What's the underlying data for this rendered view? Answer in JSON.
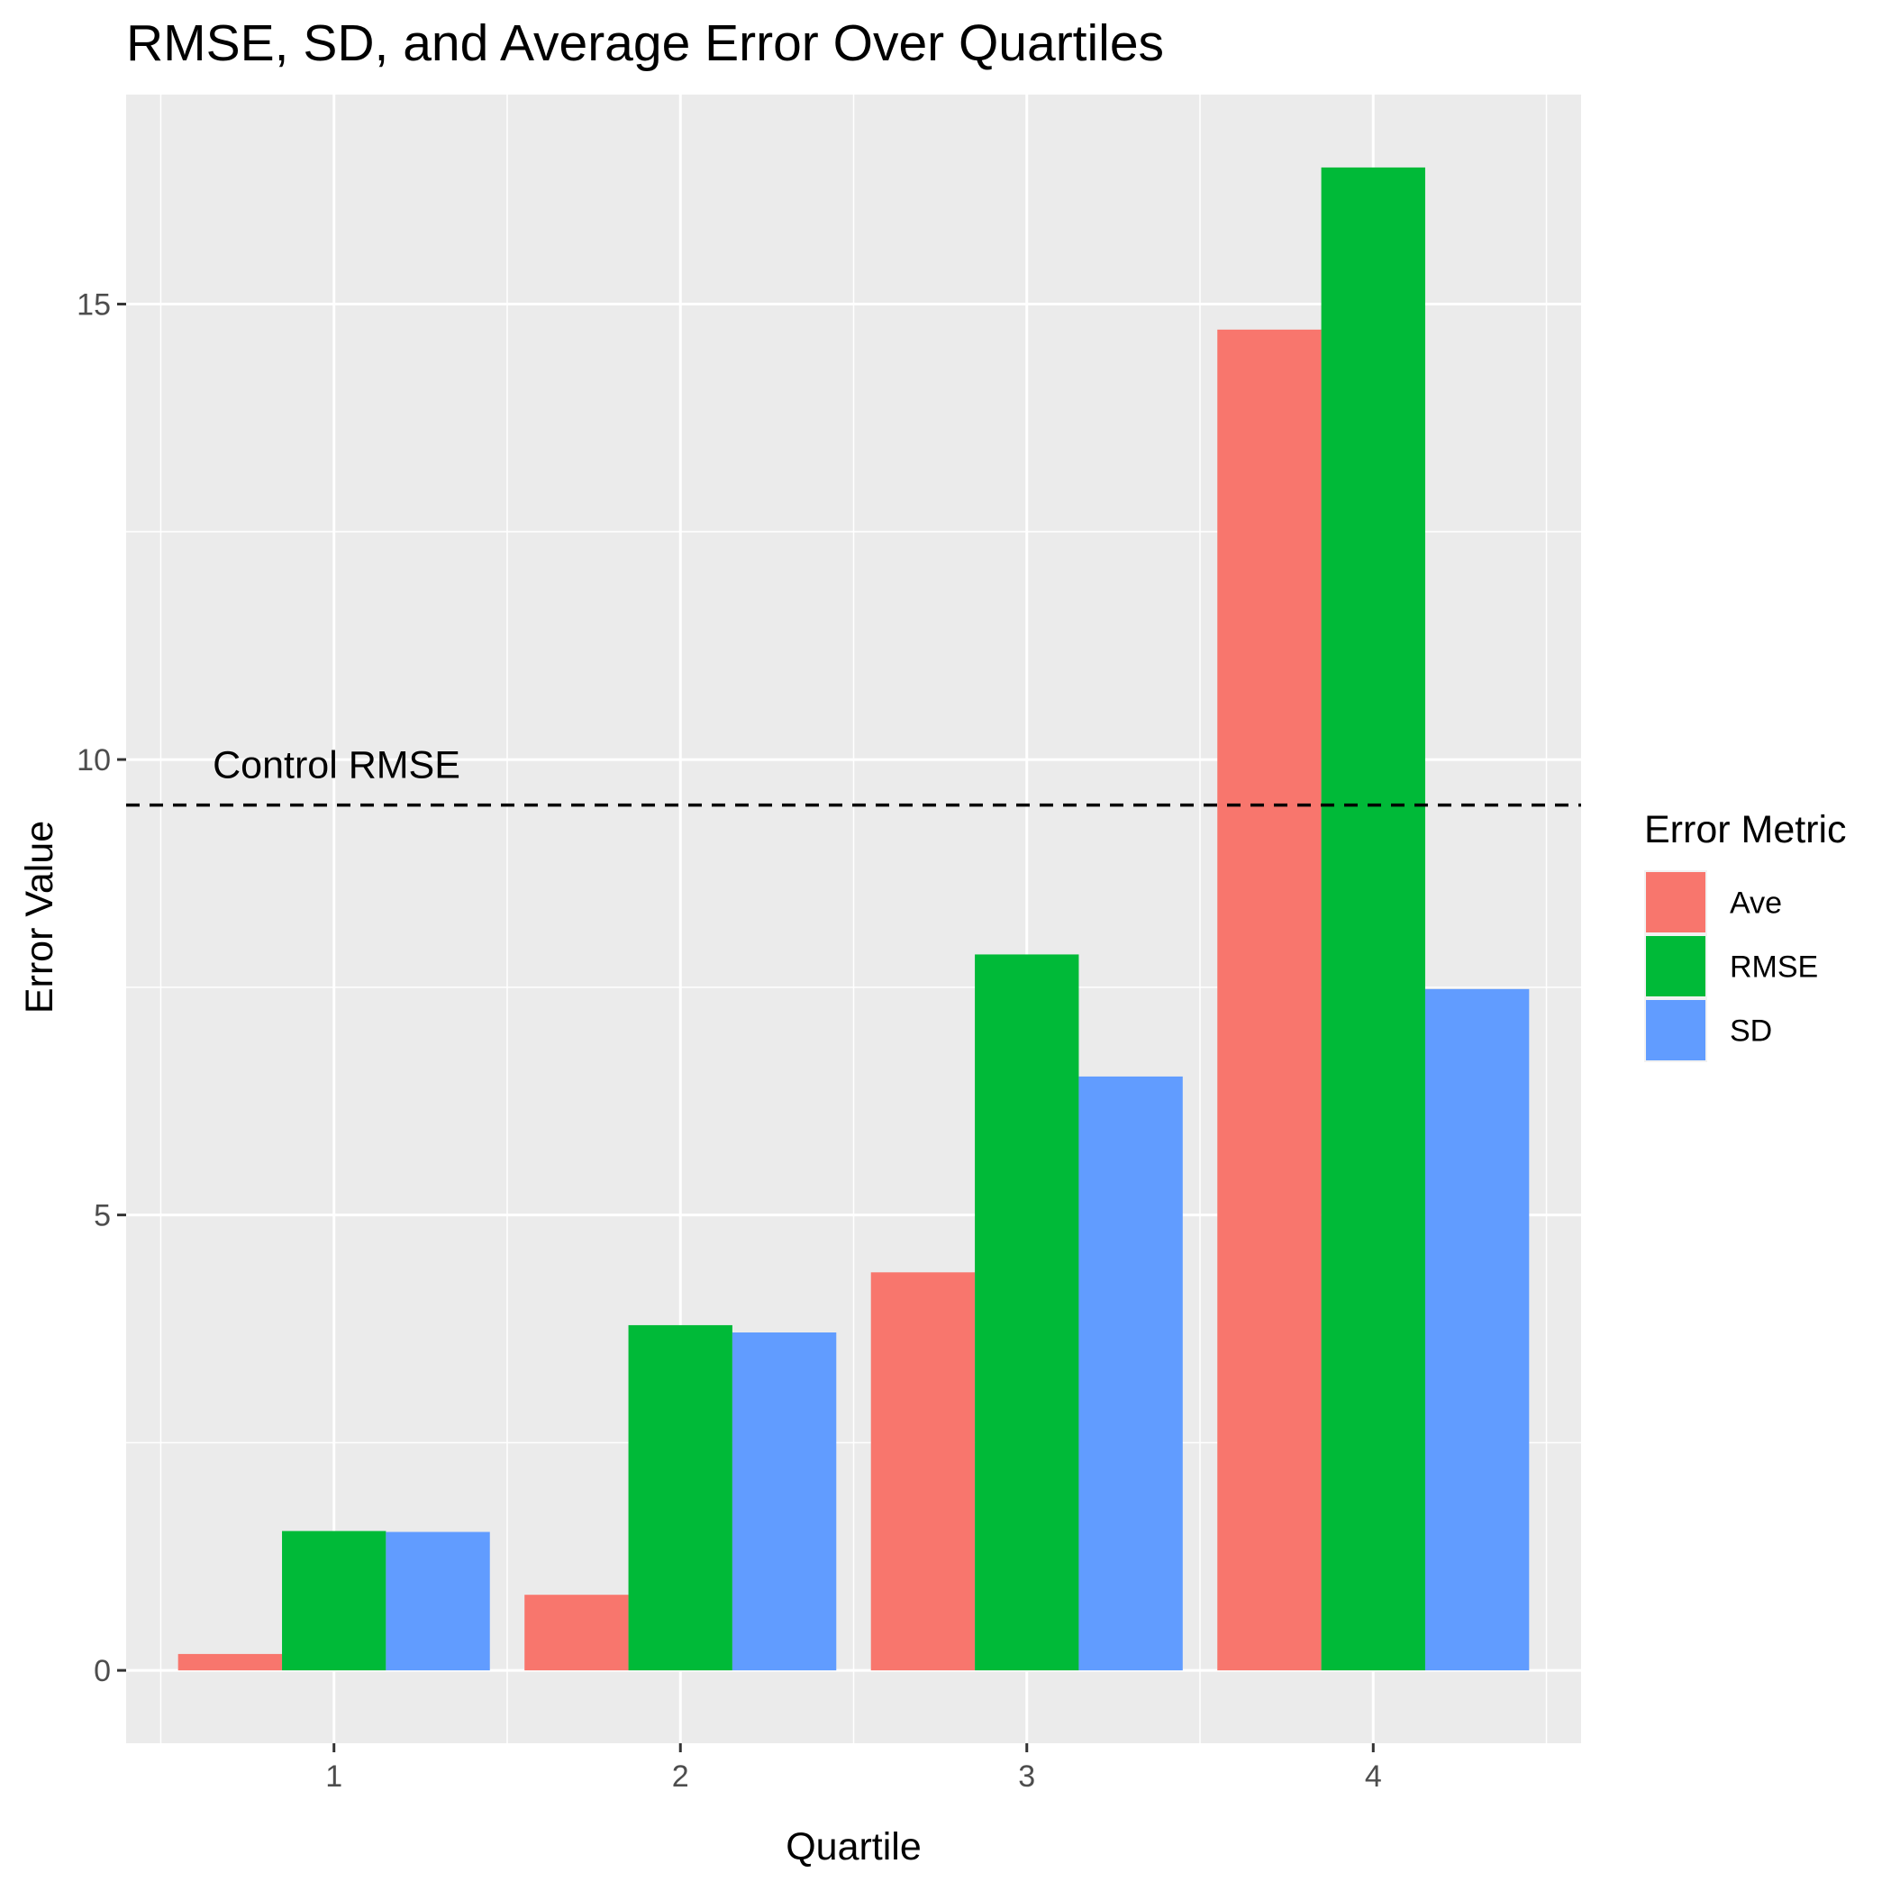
{
  "chart_data": {
    "type": "bar",
    "title": "RMSE, SD, and Average Error Over Quartiles",
    "xlabel": "Quartile",
    "ylabel": "Error Value",
    "categories": [
      "1",
      "2",
      "3",
      "4"
    ],
    "series": [
      {
        "name": "Ave",
        "color": "#F8766D",
        "values": [
          0.18,
          0.83,
          4.37,
          14.72
        ]
      },
      {
        "name": "RMSE",
        "color": "#00BA38",
        "values": [
          1.53,
          3.79,
          7.86,
          16.5
        ]
      },
      {
        "name": "SD",
        "color": "#619CFF",
        "values": [
          1.52,
          3.71,
          6.52,
          7.48
        ]
      }
    ],
    "ylim": [
      -0.8,
      17.3
    ],
    "yticks": [
      0,
      5,
      10,
      15
    ],
    "ytick_labels": [
      "0",
      "5",
      "10",
      "15"
    ],
    "legend": {
      "title": "Error Metric",
      "position": "right"
    },
    "reference_line": {
      "value": 9.5,
      "style": "dashed",
      "label": "Control RMSE"
    },
    "grid": true,
    "panel_background": "#EBEBEB"
  }
}
